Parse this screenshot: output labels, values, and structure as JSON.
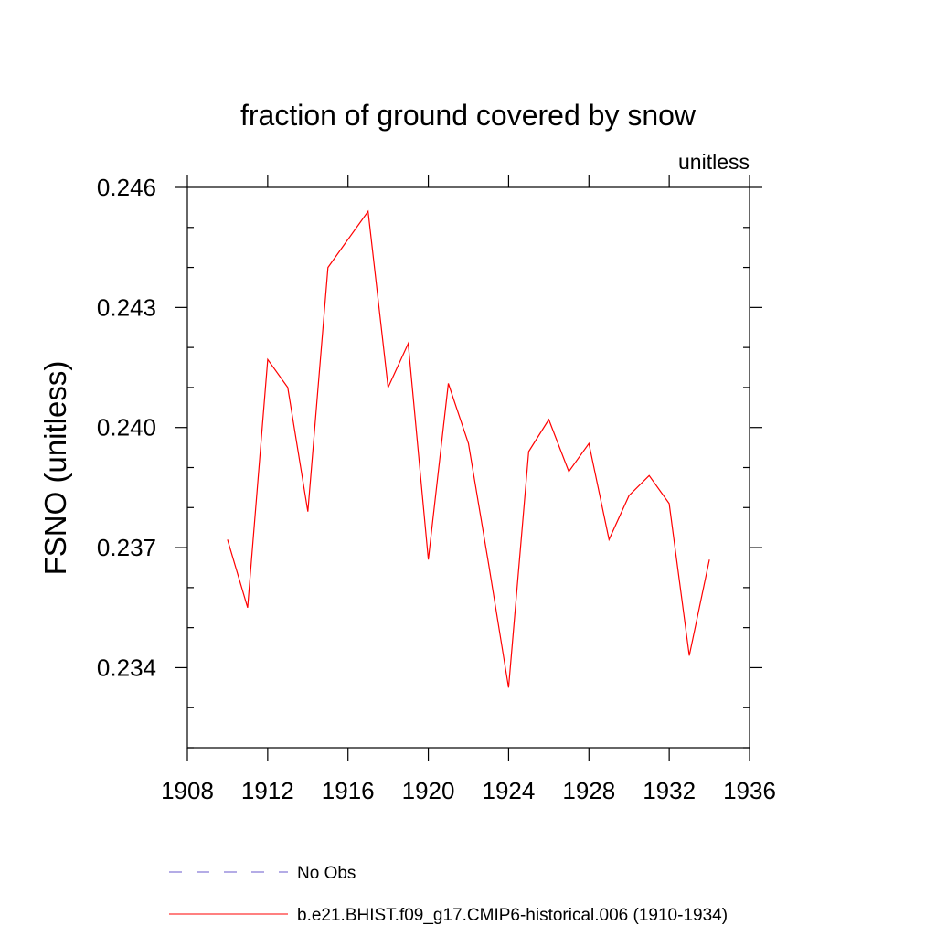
{
  "chart_data": {
    "type": "line",
    "title": "fraction of ground covered by snow",
    "units_label": "unitless",
    "xlabel": "",
    "ylabel": "FSNO  (unitless)",
    "xlim": [
      1908,
      1936
    ],
    "ylim": [
      0.232,
      0.246
    ],
    "x_ticks": [
      1908,
      1912,
      1916,
      1920,
      1924,
      1928,
      1932,
      1936
    ],
    "x_tick_labels": [
      "1908",
      "1912",
      "1916",
      "1920",
      "1924",
      "1928",
      "1932",
      "1936"
    ],
    "y_ticks": [
      0.234,
      0.237,
      0.24,
      0.243,
      0.246
    ],
    "y_tick_labels": [
      "0.234",
      "0.237",
      "0.240",
      "0.243",
      "0.246"
    ],
    "y_minor_step": 0.001,
    "grid": false,
    "legend_position": "bottom",
    "series": [
      {
        "name": "No Obs",
        "color": "#6a5acd",
        "dash": "dashed",
        "x": [],
        "y": []
      },
      {
        "name": "b.e21.BHIST.f09_g17.CMIP6-historical.006 (1910-1934)",
        "color": "#ff0000",
        "dash": "solid",
        "x": [
          1910,
          1911,
          1912,
          1913,
          1914,
          1915,
          1916,
          1917,
          1918,
          1919,
          1920,
          1921,
          1922,
          1923,
          1924,
          1925,
          1926,
          1927,
          1928,
          1929,
          1930,
          1931,
          1932,
          1933,
          1934
        ],
        "y": [
          0.2372,
          0.2355,
          0.2417,
          0.241,
          0.2379,
          0.244,
          0.2447,
          0.2454,
          0.241,
          0.2421,
          0.2367,
          0.2411,
          0.2396,
          0.2366,
          0.2335,
          0.2394,
          0.2402,
          0.2389,
          0.2396,
          0.2372,
          0.2383,
          0.2388,
          0.2381,
          0.2343,
          0.2367
        ]
      }
    ]
  }
}
